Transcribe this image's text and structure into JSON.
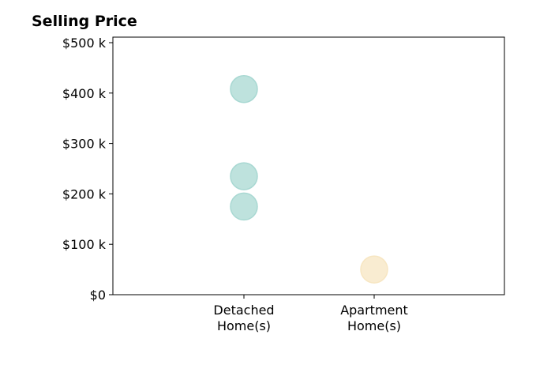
{
  "chart_data": {
    "type": "scatter",
    "title": "Selling Price",
    "categories": [
      "Detached Home(s)",
      "Apartment Home(s)"
    ],
    "category_labels": [
      [
        "Detached",
        "Home(s)"
      ],
      [
        "Apartment",
        "Home(s)"
      ]
    ],
    "points": [
      {
        "category": "Detached Home(s)",
        "y": 408000
      },
      {
        "category": "Detached Home(s)",
        "y": 235000
      },
      {
        "category": "Detached Home(s)",
        "y": 175000
      },
      {
        "category": "Apartment Home(s)",
        "y": 50000
      }
    ],
    "ylim": [
      0,
      500000
    ],
    "yticks": [
      0,
      100000,
      200000,
      300000,
      400000,
      500000
    ],
    "ytick_labels": [
      "$0",
      "$100 k",
      "$200 k",
      "$300 k",
      "$400 k",
      "$500 k"
    ],
    "colors": {
      "Detached Home(s)": "#a8d8d2",
      "Apartment Home(s)": "#f7e6c2"
    },
    "grid": false
  }
}
